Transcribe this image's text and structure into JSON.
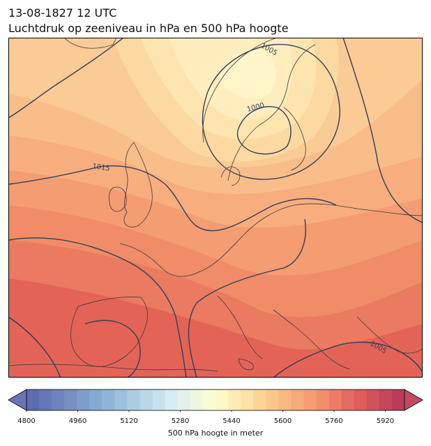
{
  "title_line1": "13-08-1827 12 UTC",
  "title_line2": "Luchtdruk op zeeniveau in hPa en 500 hPa hoogte",
  "isobar_labels": [
    "1005",
    "1000",
    "1015",
    "1005"
  ],
  "colorbar": {
    "label": "500 hPa hoogte in meter",
    "min": 4800,
    "max": 5980,
    "step": 40,
    "ticks": [
      "4800",
      "4960",
      "5120",
      "5280",
      "5440",
      "5600",
      "5760",
      "5920"
    ]
  },
  "chart_data": {
    "type": "heatmap",
    "title": "13-08-1827 12 UTC",
    "subtitle": "Luchtdruk op zeeniveau in hPa en 500 hPa hoogte",
    "field_range_m": [
      5440,
      5960
    ],
    "low_pressure_center_hPa": 1000,
    "isobar_values_hPa": [
      1000,
      1005,
      1015
    ],
    "colormap": "RdYlBu_r"
  },
  "colors": {
    "land_outline": "#3a3a3a",
    "isobar": "#2f3f5a",
    "border": "#000000"
  }
}
